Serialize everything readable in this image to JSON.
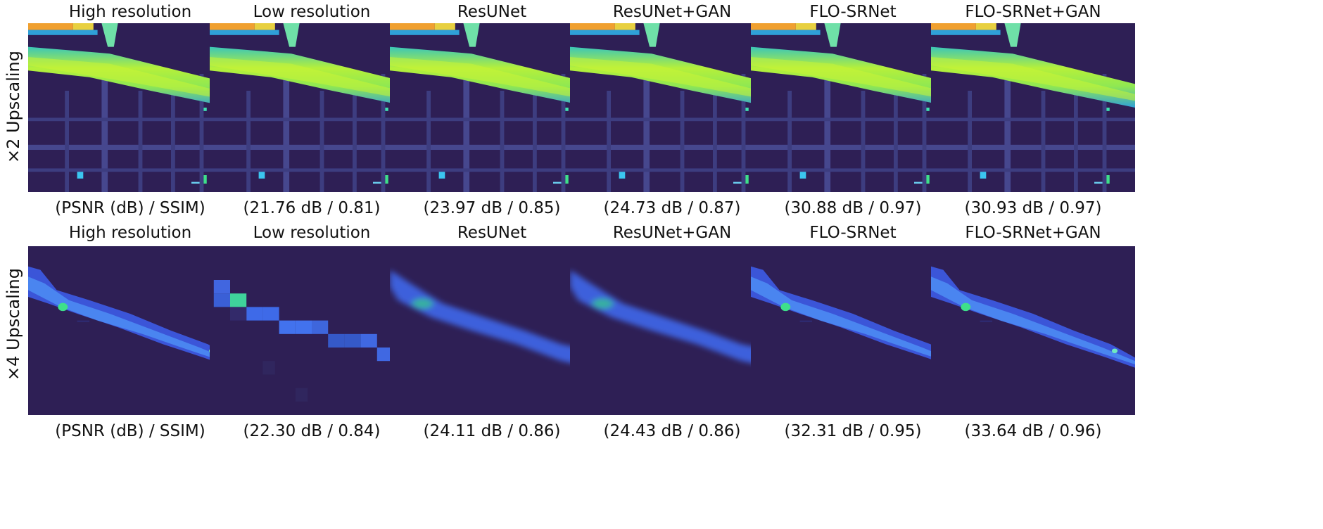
{
  "rows": [
    {
      "label": "×2 Upscaling",
      "titles": [
        "High resolution",
        "Low resolution",
        "ResUNet",
        "ResUNet+GAN",
        "FLO-SRNet",
        "FLO-SRNet+GAN"
      ],
      "captions": [
        "(PSNR (dB) / SSIM)",
        "(21.76 dB / 0.81)",
        "(23.97 dB / 0.85)",
        "(24.73 dB / 0.87)",
        "(30.88 dB / 0.97)",
        "(30.93 dB / 0.97)"
      ]
    },
    {
      "label": "×4 Upscaling",
      "titles": [
        "High resolution",
        "Low resolution",
        "ResUNet",
        "ResUNet+GAN",
        "FLO-SRNet",
        "FLO-SRNet+GAN"
      ],
      "captions": [
        "(PSNR (dB) / SSIM)",
        "(22.30 dB / 0.84)",
        "(24.11 dB / 0.86)",
        "(24.43 dB / 0.86)",
        "(32.31 dB / 0.95)",
        "(33.64 dB / 0.96)"
      ]
    }
  ],
  "colors": {
    "background": "#2e1f55",
    "streets": "#4a4b9a",
    "flow_low": "#3f7fe6",
    "flow_mid": "#3ec0b0",
    "flow_high": "#c6f23a"
  }
}
